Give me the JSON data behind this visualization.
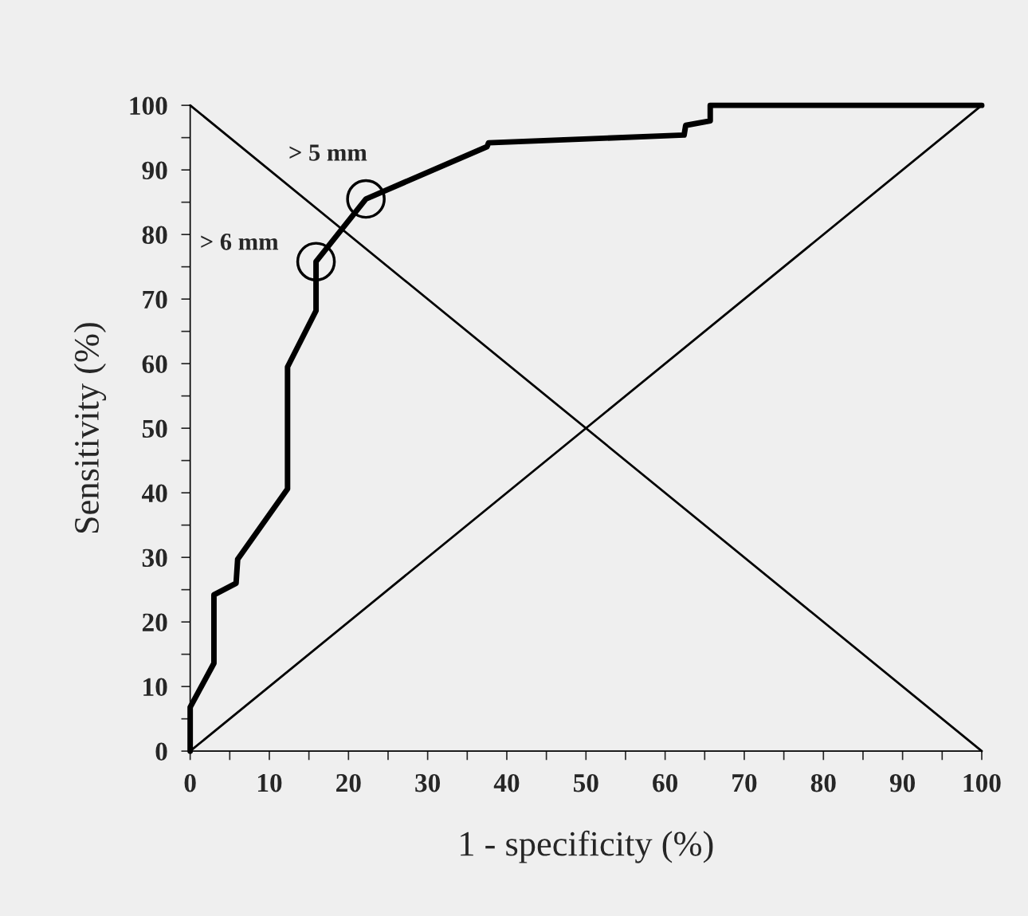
{
  "chart_data": {
    "type": "line",
    "xlabel": "1 - specificity (%)",
    "ylabel": "Sensitivity (%)",
    "xlim": [
      0,
      100
    ],
    "ylim": [
      0,
      100
    ],
    "xticks": [
      0,
      {
        "value": 5,
        "label": null
      },
      10,
      {
        "value": 15,
        "label": null
      },
      20,
      {
        "value": 25,
        "label": null
      },
      30,
      {
        "value": 35,
        "label": null
      },
      40,
      {
        "value": 45,
        "label": null
      },
      50,
      {
        "value": 55,
        "label": null
      },
      60,
      {
        "value": 65,
        "label": null
      },
      70,
      {
        "value": 75,
        "label": null
      },
      80,
      {
        "value": 85,
        "label": null
      },
      90,
      {
        "value": 95,
        "label": null
      },
      100
    ],
    "yticks": [
      0,
      {
        "value": 5,
        "label": null
      },
      10,
      {
        "value": 15,
        "label": null
      },
      20,
      {
        "value": 25,
        "label": null
      },
      30,
      {
        "value": 35,
        "label": null
      },
      40,
      {
        "value": 45,
        "label": null
      },
      50,
      {
        "value": 55,
        "label": null
      },
      60,
      {
        "value": 65,
        "label": null
      },
      70,
      {
        "value": 75,
        "label": null
      },
      80,
      {
        "value": 85,
        "label": null
      },
      90,
      {
        "value": 95,
        "label": null
      },
      100
    ],
    "grid": false,
    "legend": false,
    "series": [
      {
        "color": "#000000",
        "x": [
          0,
          0,
          3,
          3,
          5.8,
          6,
          12.3,
          12.3,
          15.9,
          15.9,
          22.2,
          37.5,
          37.7,
          62.4,
          62.6,
          65.7,
          65.7,
          100
        ],
        "values": [
          0,
          6.8,
          13.6,
          24.2,
          26,
          29.7,
          40.6,
          59.5,
          68.2,
          75.8,
          85.5,
          93.6,
          94.2,
          95.4,
          96.9,
          97.6,
          100,
          100
        ]
      },
      {
        "color": "#000000",
        "x": [
          0,
          100
        ],
        "values": [
          0,
          100
        ]
      },
      {
        "color": "#000000",
        "x": [
          0,
          100
        ],
        "values": [
          100,
          0
        ]
      },
      {
        "type": "scatter",
        "color": "#000000",
        "marker": "circle",
        "x": [
          15.9,
          22.2
        ],
        "values": [
          75.8,
          85.5
        ]
      }
    ],
    "annotations": [
      {
        "text": "> 6 mm",
        "x": 15.9,
        "y": 75.8
      },
      {
        "text": "> 5 mm",
        "x": 22.2,
        "y": 85.5
      }
    ]
  }
}
